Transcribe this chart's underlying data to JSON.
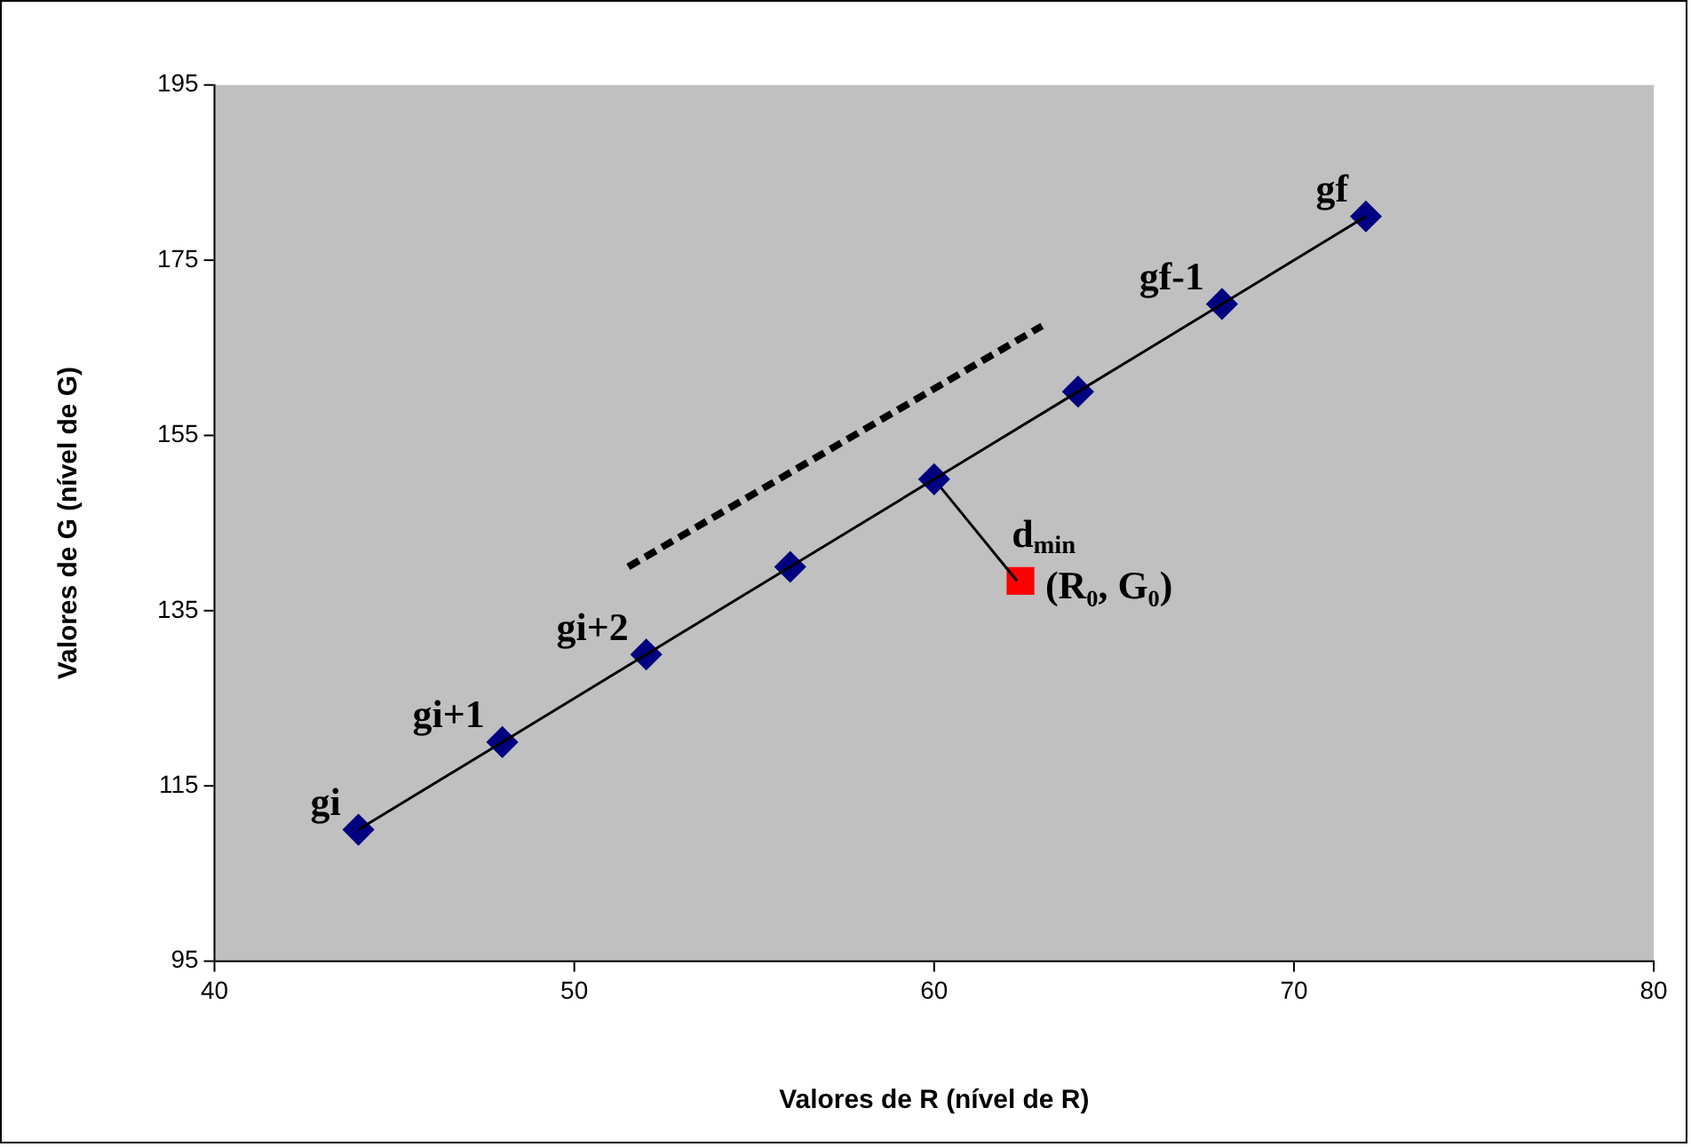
{
  "chart_data": {
    "type": "line",
    "xlabel": "Valores de R (nível de R)",
    "ylabel": "Valores de G (nível de G)",
    "xlim": [
      40,
      80
    ],
    "xticks": [
      40,
      50,
      60,
      70,
      80
    ],
    "ylim": [
      95,
      195
    ],
    "yticks": [
      95,
      115,
      135,
      155,
      175,
      195
    ],
    "grid": false,
    "legend": false,
    "series": [
      {
        "color": "#000000",
        "marker": "none",
        "x": [
          44,
          48,
          52,
          56,
          60,
          64,
          68,
          72
        ],
        "values": [
          110,
          120,
          130,
          140,
          150,
          160,
          170,
          180
        ]
      },
      {
        "type": "scatter",
        "color": "#000080",
        "marker": "diamond",
        "x": [
          44,
          48,
          52,
          56,
          60,
          64,
          68,
          72
        ],
        "values": [
          110,
          120,
          130,
          140,
          150,
          160,
          170,
          180
        ]
      },
      {
        "color": "#000000",
        "marker": "none",
        "x": [
          60,
          62.3
        ],
        "values": [
          150,
          138.4
        ]
      },
      {
        "color": "#000000",
        "marker": "none",
        "line_style": "dashed",
        "x": [
          51.5,
          63
        ],
        "values": [
          140,
          167.5
        ]
      },
      {
        "type": "scatter",
        "color": "#ff0000",
        "marker": "square",
        "x": [
          62.4
        ],
        "values": [
          138.4
        ]
      }
    ],
    "annotations": [
      {
        "text": "gi",
        "x": 44,
        "y": 110
      },
      {
        "text": "gi+1",
        "x": 48,
        "y": 120
      },
      {
        "text": "gi+2",
        "x": 52,
        "y": 130
      },
      {
        "text": "gf-1",
        "x": 68,
        "y": 170
      },
      {
        "text": "gf",
        "x": 72,
        "y": 180
      },
      {
        "text": "d$_{min}$",
        "x": 61.15,
        "y": 144.2
      },
      {
        "text": "(R₀, G₀)",
        "x": 62.4,
        "y": 138.4
      }
    ]
  }
}
